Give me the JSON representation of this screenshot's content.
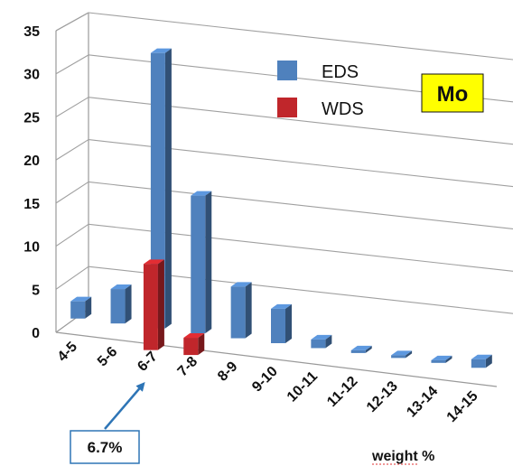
{
  "chart_data": {
    "type": "bar",
    "categories": [
      "4-5",
      "5-6",
      "6-7",
      "7-8",
      "8-9",
      "9-10",
      "10-11",
      "11-12",
      "12-13",
      "13-14",
      "14-15"
    ],
    "series": [
      {
        "name": "EDS",
        "color": "#4f81bd",
        "values": [
          2,
          4,
          32,
          16,
          6,
          4,
          1,
          0.2,
          0.2,
          0.2,
          1
        ]
      },
      {
        "name": "WDS",
        "color": "#c0262b",
        "values": [
          0,
          0,
          10,
          2,
          0,
          0,
          0,
          0,
          0,
          0,
          0
        ]
      }
    ],
    "y_ticks": [
      "0",
      "5",
      "10",
      "15",
      "20",
      "25",
      "30",
      "35"
    ],
    "ylim": [
      0,
      35
    ],
    "xlabel": "weight %",
    "ylabel": "",
    "title": "",
    "grid": true,
    "legend_position": "top-center",
    "style": "3d-column"
  },
  "tag": {
    "label": "Mo",
    "background": "#ffff00"
  },
  "callout": {
    "label": "6.7%",
    "points_to": "6-7",
    "arrow_color": "#2e75b6"
  }
}
